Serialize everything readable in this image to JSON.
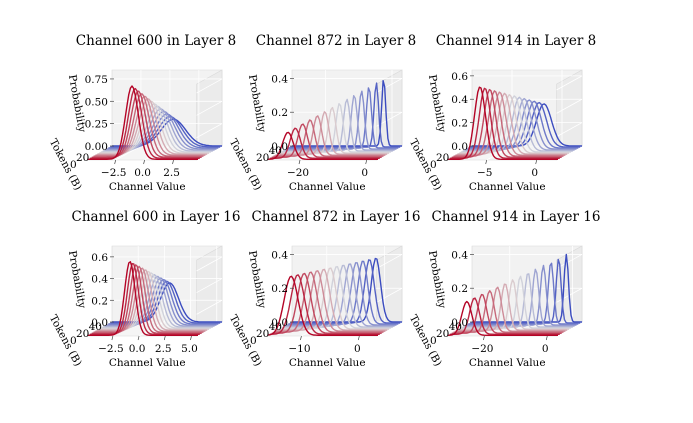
{
  "figure": {
    "shared_axis_labels": {
      "y": "Probability",
      "depth": "Tokens (B)",
      "x": "Channel Value"
    },
    "colormap": {
      "start": "#3b4cc0",
      "mid": "#dddddd",
      "end": "#b40426"
    }
  },
  "chart_data": [
    {
      "type": "3d-line",
      "title": "Channel 600 in Layer 8",
      "xlabel": "Channel Value",
      "ylabel": "Probability",
      "zlabel": "Tokens (B)",
      "xlim": [
        -5,
        4.5
      ],
      "ylim": [
        0,
        0.85
      ],
      "tokens_lim": [
        0,
        40
      ],
      "xticks": [
        "−2.5",
        "0.0",
        "2.5"
      ],
      "xtick_values": [
        -2.5,
        0,
        2.5
      ],
      "yticks": [
        "0.00",
        "0.25",
        "0.50",
        "0.75"
      ],
      "ytick_values": [
        0,
        0.25,
        0.5,
        0.75
      ],
      "tokens_ticks": [
        "0",
        "20"
      ],
      "tokens_tick_values": [
        0,
        20
      ],
      "num_series": 14,
      "tokens_range": [
        2,
        40
      ],
      "series_start": {
        "center": -1.2,
        "width": 0.55,
        "peak": 0.82
      },
      "series_end": {
        "center": 0.3,
        "width": 1.05,
        "peak": 0.3
      }
    },
    {
      "type": "3d-line",
      "title": "Channel 872 in Layer 8",
      "xlabel": "Channel Value",
      "ylabel": "Probability",
      "zlabel": "Tokens (B)",
      "xlim": [
        -30,
        3
      ],
      "ylim": [
        0,
        0.45
      ],
      "tokens_lim": [
        0,
        40
      ],
      "xticks": [
        "−20",
        "0"
      ],
      "xtick_values": [
        -20,
        0
      ],
      "yticks": [
        "0.0",
        "0.2",
        "0.4"
      ],
      "ytick_values": [
        0,
        0.2,
        0.4
      ],
      "tokens_ticks": [
        "20",
        "40"
      ],
      "tokens_tick_values": [
        20,
        40
      ],
      "num_series": 14,
      "tokens_range": [
        2,
        40
      ],
      "series_start": {
        "center": -24,
        "width": 1.6,
        "peak": 0.16
      },
      "series_end": {
        "center": -2.5,
        "width": 0.6,
        "peak": 0.4
      }
    },
    {
      "type": "3d-line",
      "title": "Channel 914 in Layer 8",
      "xlabel": "Channel Value",
      "ylabel": "Probability",
      "zlabel": "Tokens (B)",
      "xlim": [
        -9,
        2
      ],
      "ylim": [
        0,
        0.65
      ],
      "tokens_lim": [
        0,
        40
      ],
      "xticks": [
        "−5",
        "0"
      ],
      "xtick_values": [
        -5,
        0
      ],
      "yticks": [
        "0.0",
        "0.2",
        "0.4",
        "0.6"
      ],
      "ytick_values": [
        0,
        0.2,
        0.4,
        0.6
      ],
      "tokens_ticks": [
        "0",
        "20"
      ],
      "tokens_tick_values": [
        0,
        20
      ],
      "num_series": 14,
      "tokens_range": [
        2,
        40
      ],
      "series_start": {
        "center": -5.8,
        "width": 0.55,
        "peak": 0.62
      },
      "series_end": {
        "center": -1.8,
        "width": 0.75,
        "peak": 0.36
      }
    },
    {
      "type": "3d-line",
      "title": "Channel 600 in Layer 16",
      "xlabel": "Channel Value",
      "ylabel": "Probability",
      "zlabel": "Tokens (B)",
      "xlim": [
        -5,
        5.5
      ],
      "ylim": [
        0,
        0.7
      ],
      "tokens_lim": [
        0,
        40
      ],
      "xticks": [
        "−2.5",
        "0.0",
        "2.5",
        "5.0"
      ],
      "xtick_values": [
        -2.5,
        0,
        2.5,
        5
      ],
      "yticks": [
        "0.0",
        "0.2",
        "0.4",
        "0.6"
      ],
      "ytick_values": [
        0,
        0.2,
        0.4,
        0.6
      ],
      "tokens_ticks": [
        "0",
        "20",
        "40"
      ],
      "tokens_tick_values": [
        0,
        20,
        40
      ],
      "num_series": 14,
      "tokens_range": [
        2,
        40
      ],
      "series_start": {
        "center": -1.0,
        "width": 0.5,
        "peak": 0.68
      },
      "series_end": {
        "center": 0.5,
        "width": 0.85,
        "peak": 0.36
      }
    },
    {
      "type": "3d-line",
      "title": "Channel 872 in Layer 16",
      "xlabel": "Channel Value",
      "ylabel": "Probability",
      "zlabel": "Tokens (B)",
      "xlim": [
        -16,
        3
      ],
      "ylim": [
        0,
        0.45
      ],
      "tokens_lim": [
        0,
        40
      ],
      "xticks": [
        "−10",
        "0"
      ],
      "xtick_values": [
        -10,
        0
      ],
      "yticks": [
        "0.0",
        "0.2",
        "0.4"
      ],
      "ytick_values": [
        0,
        0.2,
        0.4
      ],
      "tokens_ticks": [
        "0",
        "20",
        "40"
      ],
      "tokens_tick_values": [
        0,
        20,
        40
      ],
      "num_series": 14,
      "tokens_range": [
        2,
        40
      ],
      "series_start": {
        "center": -12,
        "width": 1.2,
        "peak": 0.35
      },
      "series_end": {
        "center": -1.5,
        "width": 0.8,
        "peak": 0.38
      }
    },
    {
      "type": "3d-line",
      "title": "Channel 914 in Layer 16",
      "xlabel": "Channel Value",
      "ylabel": "Probability",
      "zlabel": "Tokens (B)",
      "xlim": [
        -32,
        3
      ],
      "ylim": [
        0,
        0.45
      ],
      "tokens_lim": [
        0,
        40
      ],
      "xticks": [
        "−20",
        "0"
      ],
      "xtick_values": [
        -20,
        0
      ],
      "yticks": [
        "0.0",
        "0.2",
        "0.4"
      ],
      "ytick_values": [
        0,
        0.2,
        0.4
      ],
      "tokens_ticks": [
        "0",
        "20",
        "40"
      ],
      "tokens_tick_values": [
        0,
        20,
        40
      ],
      "num_series": 14,
      "tokens_range": [
        2,
        40
      ],
      "series_start": {
        "center": -26,
        "width": 1.6,
        "peak": 0.2
      },
      "series_end": {
        "center": -2,
        "width": 0.7,
        "peak": 0.4
      }
    }
  ]
}
